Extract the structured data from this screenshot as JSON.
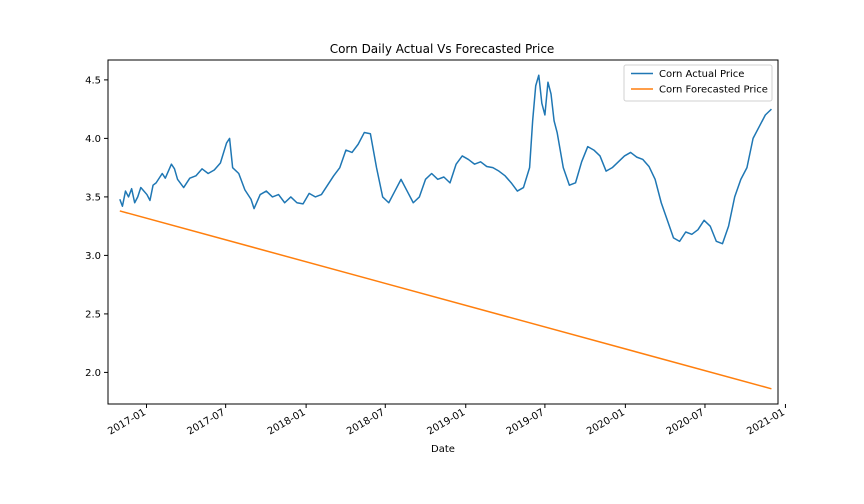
{
  "chart_data": {
    "type": "line",
    "title": "Corn Daily Actual Vs Forecasted Price",
    "xlabel": "Date",
    "ylabel": "",
    "xlim": [
      "2016-10-05",
      "2020-12-15"
    ],
    "ylim": [
      1.73,
      4.67
    ],
    "x_ticks": [
      "2017-01",
      "2017-07",
      "2018-01",
      "2018-07",
      "2019-01",
      "2019-07",
      "2020-01",
      "2020-07",
      "2021-01"
    ],
    "y_ticks": [
      2.0,
      2.5,
      3.0,
      3.5,
      4.0,
      4.5
    ],
    "y_tick_labels": [
      "2.0",
      "2.5",
      "3.0",
      "3.5",
      "4.0",
      "4.5"
    ],
    "legend": {
      "placement": "top-right"
    },
    "grid": false,
    "series": [
      {
        "name": "Corn Actual Price",
        "color": "#1f77b4",
        "points": [
          [
            "2016-11-01",
            3.48
          ],
          [
            "2016-11-07",
            3.42
          ],
          [
            "2016-11-14",
            3.55
          ],
          [
            "2016-11-21",
            3.5
          ],
          [
            "2016-11-28",
            3.57
          ],
          [
            "2016-12-05",
            3.45
          ],
          [
            "2016-12-12",
            3.5
          ],
          [
            "2016-12-19",
            3.58
          ],
          [
            "2017-01-02",
            3.52
          ],
          [
            "2017-01-09",
            3.47
          ],
          [
            "2017-01-16",
            3.6
          ],
          [
            "2017-01-23",
            3.62
          ],
          [
            "2017-02-06",
            3.7
          ],
          [
            "2017-02-13",
            3.66
          ],
          [
            "2017-02-27",
            3.78
          ],
          [
            "2017-03-06",
            3.74
          ],
          [
            "2017-03-13",
            3.65
          ],
          [
            "2017-03-27",
            3.58
          ],
          [
            "2017-04-10",
            3.66
          ],
          [
            "2017-04-24",
            3.68
          ],
          [
            "2017-05-08",
            3.74
          ],
          [
            "2017-05-22",
            3.7
          ],
          [
            "2017-06-05",
            3.73
          ],
          [
            "2017-06-19",
            3.79
          ],
          [
            "2017-07-03",
            3.96
          ],
          [
            "2017-07-10",
            4.0
          ],
          [
            "2017-07-17",
            3.75
          ],
          [
            "2017-07-31",
            3.7
          ],
          [
            "2017-08-14",
            3.56
          ],
          [
            "2017-08-28",
            3.48
          ],
          [
            "2017-09-04",
            3.4
          ],
          [
            "2017-09-18",
            3.52
          ],
          [
            "2017-10-02",
            3.55
          ],
          [
            "2017-10-16",
            3.5
          ],
          [
            "2017-10-30",
            3.52
          ],
          [
            "2017-11-13",
            3.45
          ],
          [
            "2017-11-27",
            3.5
          ],
          [
            "2017-12-11",
            3.45
          ],
          [
            "2017-12-25",
            3.44
          ],
          [
            "2018-01-08",
            3.53
          ],
          [
            "2018-01-22",
            3.5
          ],
          [
            "2018-02-05",
            3.52
          ],
          [
            "2018-02-19",
            3.6
          ],
          [
            "2018-03-05",
            3.68
          ],
          [
            "2018-03-19",
            3.75
          ],
          [
            "2018-04-02",
            3.9
          ],
          [
            "2018-04-16",
            3.88
          ],
          [
            "2018-04-30",
            3.95
          ],
          [
            "2018-05-14",
            4.05
          ],
          [
            "2018-05-28",
            4.04
          ],
          [
            "2018-06-11",
            3.75
          ],
          [
            "2018-06-25",
            3.5
          ],
          [
            "2018-07-09",
            3.45
          ],
          [
            "2018-07-23",
            3.55
          ],
          [
            "2018-08-06",
            3.65
          ],
          [
            "2018-08-20",
            3.55
          ],
          [
            "2018-09-03",
            3.45
          ],
          [
            "2018-09-17",
            3.5
          ],
          [
            "2018-10-01",
            3.65
          ],
          [
            "2018-10-15",
            3.7
          ],
          [
            "2018-10-29",
            3.65
          ],
          [
            "2018-11-12",
            3.67
          ],
          [
            "2018-11-26",
            3.62
          ],
          [
            "2018-12-10",
            3.78
          ],
          [
            "2018-12-24",
            3.85
          ],
          [
            "2019-01-07",
            3.82
          ],
          [
            "2019-01-21",
            3.78
          ],
          [
            "2019-02-04",
            3.8
          ],
          [
            "2019-02-18",
            3.76
          ],
          [
            "2019-03-04",
            3.75
          ],
          [
            "2019-03-18",
            3.72
          ],
          [
            "2019-04-01",
            3.68
          ],
          [
            "2019-04-15",
            3.62
          ],
          [
            "2019-04-29",
            3.55
          ],
          [
            "2019-05-13",
            3.58
          ],
          [
            "2019-05-27",
            3.75
          ],
          [
            "2019-06-03",
            4.15
          ],
          [
            "2019-06-10",
            4.45
          ],
          [
            "2019-06-17",
            4.54
          ],
          [
            "2019-06-24",
            4.3
          ],
          [
            "2019-07-01",
            4.2
          ],
          [
            "2019-07-08",
            4.48
          ],
          [
            "2019-07-15",
            4.38
          ],
          [
            "2019-07-22",
            4.15
          ],
          [
            "2019-07-29",
            4.05
          ],
          [
            "2019-08-12",
            3.75
          ],
          [
            "2019-08-26",
            3.6
          ],
          [
            "2019-09-09",
            3.62
          ],
          [
            "2019-09-23",
            3.8
          ],
          [
            "2019-10-07",
            3.93
          ],
          [
            "2019-10-21",
            3.9
          ],
          [
            "2019-11-04",
            3.85
          ],
          [
            "2019-11-18",
            3.72
          ],
          [
            "2019-12-02",
            3.75
          ],
          [
            "2019-12-16",
            3.8
          ],
          [
            "2019-12-30",
            3.85
          ],
          [
            "2020-01-13",
            3.88
          ],
          [
            "2020-01-27",
            3.84
          ],
          [
            "2020-02-10",
            3.82
          ],
          [
            "2020-02-24",
            3.76
          ],
          [
            "2020-03-09",
            3.65
          ],
          [
            "2020-03-23",
            3.45
          ],
          [
            "2020-04-06",
            3.3
          ],
          [
            "2020-04-20",
            3.15
          ],
          [
            "2020-05-04",
            3.12
          ],
          [
            "2020-05-18",
            3.2
          ],
          [
            "2020-06-01",
            3.18
          ],
          [
            "2020-06-15",
            3.22
          ],
          [
            "2020-06-29",
            3.3
          ],
          [
            "2020-07-13",
            3.25
          ],
          [
            "2020-07-27",
            3.12
          ],
          [
            "2020-08-10",
            3.1
          ],
          [
            "2020-08-24",
            3.25
          ],
          [
            "2020-09-07",
            3.5
          ],
          [
            "2020-09-21",
            3.65
          ],
          [
            "2020-10-05",
            3.75
          ],
          [
            "2020-10-19",
            4.0
          ],
          [
            "2020-11-02",
            4.1
          ],
          [
            "2020-11-16",
            4.2
          ],
          [
            "2020-11-30",
            4.25
          ]
        ]
      },
      {
        "name": "Corn Forecasted Price",
        "color": "#ff7f0e",
        "points": [
          [
            "2016-11-01",
            3.38
          ],
          [
            "2020-11-30",
            1.86
          ]
        ]
      }
    ]
  }
}
